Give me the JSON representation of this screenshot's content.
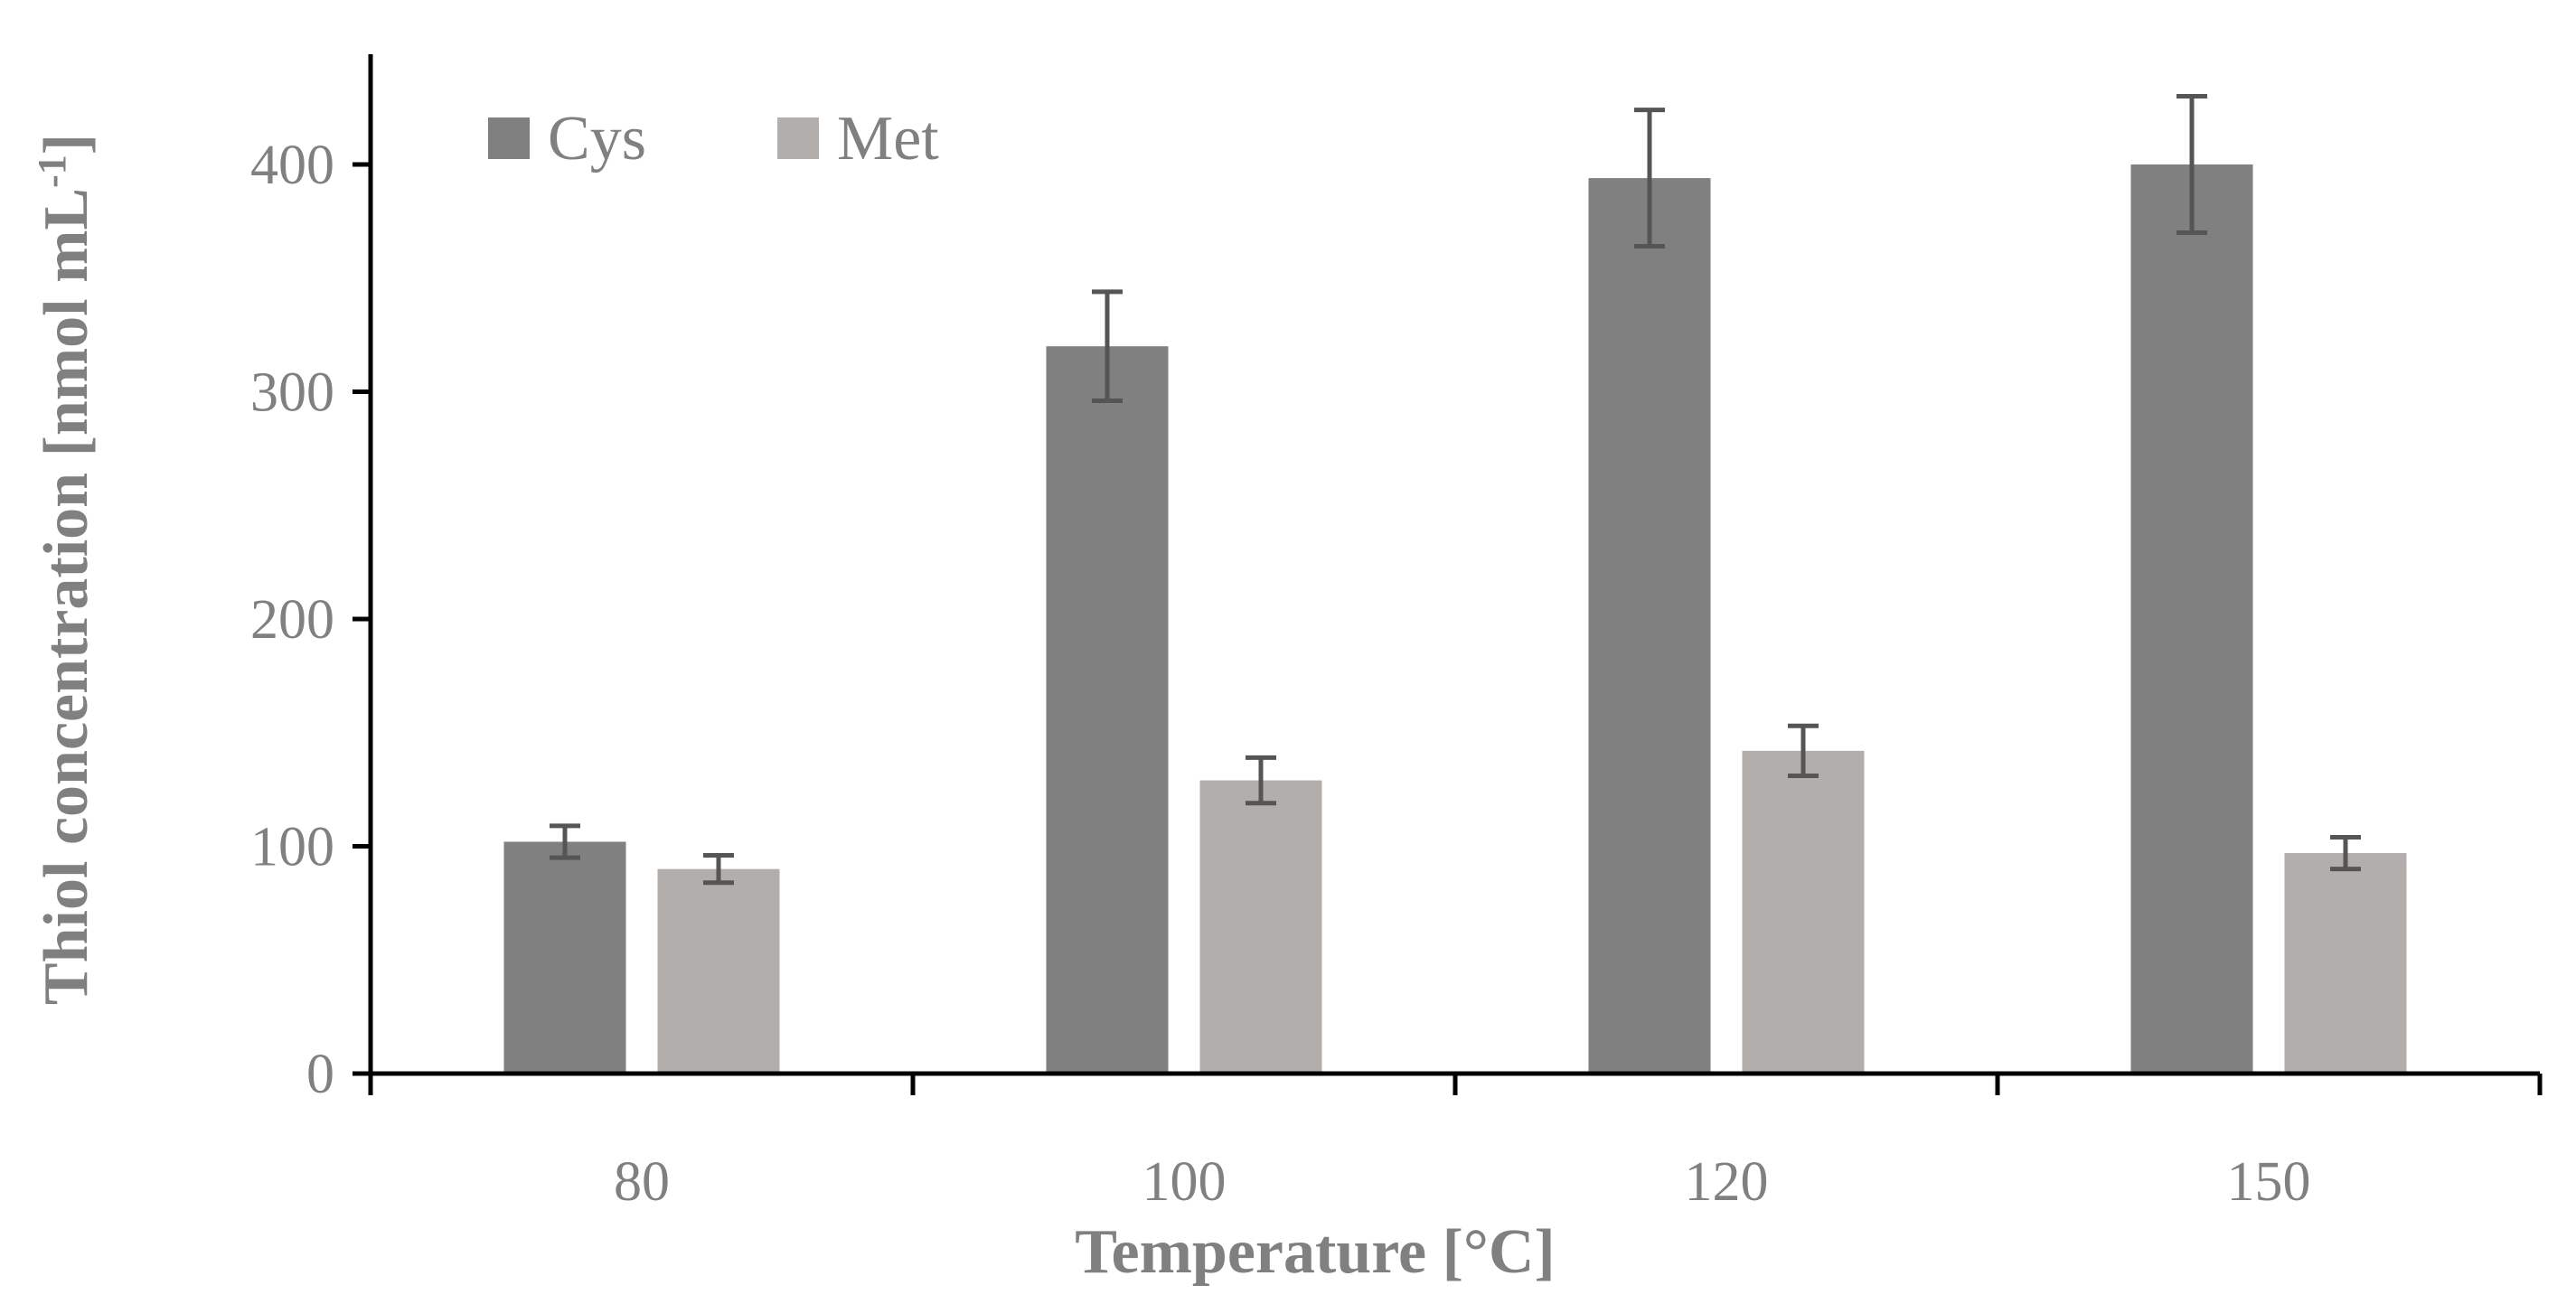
{
  "chart_data": {
    "type": "bar",
    "title": "",
    "xlabel": "Temperature [°C]",
    "ylabel": "Thiol concentration [nmol mL",
    "ylabel_superscript": "-1",
    "ylabel_close": "]",
    "categories": [
      "80",
      "100",
      "120",
      "150"
    ],
    "ylim": [
      0,
      450
    ],
    "yticks": [
      0,
      100,
      200,
      300,
      400
    ],
    "ytick_labels": [
      "0",
      "100",
      "200",
      "300",
      "400"
    ],
    "grid": false,
    "legend_position": "top-left",
    "series": [
      {
        "name": "Cys",
        "color": "#808080",
        "values": [
          102,
          320,
          394,
          400
        ],
        "errors": [
          7,
          24,
          30,
          30
        ]
      },
      {
        "name": "Met",
        "color": "#b1aeac",
        "values": [
          90,
          129,
          142,
          97
        ],
        "errors": [
          6,
          10,
          11,
          7
        ]
      }
    ],
    "colors": {
      "axis": "#000000",
      "text": "#808080",
      "error_bar": "#555555"
    }
  }
}
